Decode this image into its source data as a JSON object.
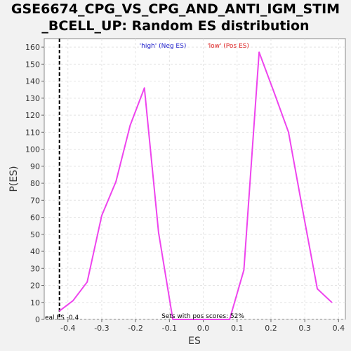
{
  "title_lines": [
    "GSE6674_CPG_VS_CPG_AND_ANTI_IGM_STIM",
    "_BCELL_UP: Random ES distribution"
  ],
  "chart_data": {
    "type": "line",
    "title": "GSE6674_CPG_VS_CPG_AND_ANTI_IGM_STIM_BCELL_UP: Random ES distribution",
    "xlabel": "ES",
    "ylabel": "P(ES)",
    "xlim": [
      -0.47,
      0.42
    ],
    "ylim": [
      0,
      165
    ],
    "x_ticks": [
      -0.4,
      -0.3,
      -0.2,
      -0.1,
      0.0,
      0.1,
      0.2,
      0.3,
      0.4
    ],
    "x_tick_labels": [
      "-0.4",
      "-0.3",
      "-0.2",
      "-0.1",
      "0.0",
      "0.1",
      "0.2",
      "0.3",
      "0.4"
    ],
    "y_ticks": [
      0,
      10,
      20,
      30,
      40,
      50,
      60,
      70,
      80,
      90,
      100,
      110,
      120,
      130,
      140,
      150,
      160
    ],
    "grid": true,
    "series": [
      {
        "color": "#ee44ee",
        "x": [
          -0.425,
          -0.385,
          -0.343,
          -0.3,
          -0.258,
          -0.216,
          -0.174,
          -0.132,
          -0.09,
          -0.048,
          -0.006,
          0.036,
          0.078,
          0.12,
          0.165,
          0.21,
          0.252,
          0.295,
          0.337,
          0.38
        ],
        "y": [
          5,
          11,
          22,
          61,
          81,
          114,
          136,
          51,
          0,
          0,
          0,
          0,
          0,
          29,
          157,
          133,
          110,
          63,
          18,
          10
        ]
      }
    ],
    "legend": [
      {
        "label": "'high' (Neg ES)",
        "color": "#2222cc"
      },
      {
        "label": "'low' (Pos ES)",
        "color": "#dd2222"
      }
    ],
    "real_es": {
      "value": -0.4,
      "label": "eal ES -0.4"
    },
    "annotation": "Sets with pos scores: 52%"
  }
}
